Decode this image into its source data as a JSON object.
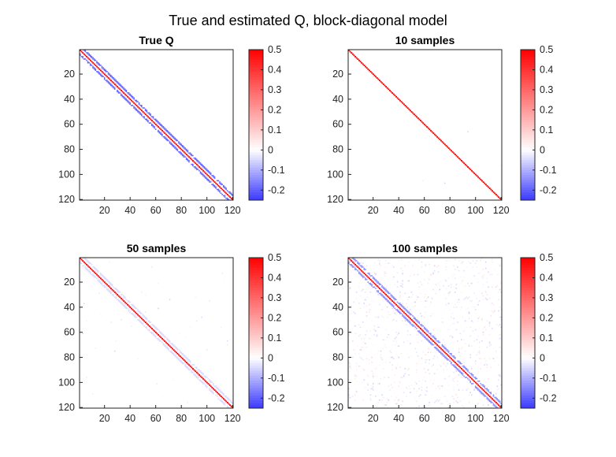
{
  "title": "True and estimated Q, block-diagonal model",
  "colormap": {
    "negative": "#3a3aff",
    "zero": "#ffffff",
    "positive": "#ff0000"
  },
  "chart_data": [
    {
      "type": "heatmap",
      "title": "True Q",
      "size": 120,
      "xticks": [
        "20",
        "40",
        "60",
        "80",
        "100",
        "120"
      ],
      "yticks": [
        "20",
        "40",
        "60",
        "80",
        "100",
        "120"
      ],
      "tick_values": [
        20,
        40,
        60,
        80,
        100,
        120
      ],
      "clim": [
        -0.25,
        0.5
      ],
      "colorbar_ticks": [
        "0.5",
        "0.4",
        "0.3",
        "0.2",
        "0.1",
        "0",
        "-0.1",
        "-0.2"
      ],
      "colorbar_values": [
        0.5,
        0.4,
        0.3,
        0.2,
        0.1,
        0,
        -0.1,
        -0.2
      ],
      "diagonal_value": 0.5,
      "band_offsets": [
        3,
        4
      ],
      "band_value": -0.2,
      "noise_density": 0
    },
    {
      "type": "heatmap",
      "title": "10 samples",
      "size": 120,
      "xticks": [
        "20",
        "40",
        "60",
        "80",
        "100",
        "120"
      ],
      "yticks": [
        "20",
        "40",
        "60",
        "80",
        "100",
        "120"
      ],
      "tick_values": [
        20,
        40,
        60,
        80,
        100,
        120
      ],
      "clim": [
        -0.25,
        0.5
      ],
      "colorbar_ticks": [
        "0.5",
        "0.4",
        "0.3",
        "0.2",
        "0.1",
        "0",
        "-0.1",
        "-0.2"
      ],
      "colorbar_values": [
        0.5,
        0.4,
        0.3,
        0.2,
        0.1,
        0,
        -0.1,
        -0.2
      ],
      "diagonal_value": 0.5,
      "band_offsets": [],
      "band_value": 0,
      "noise_density": 0.0005
    },
    {
      "type": "heatmap",
      "title": "50 samples",
      "size": 120,
      "xticks": [
        "20",
        "40",
        "60",
        "80",
        "100",
        "120"
      ],
      "yticks": [
        "20",
        "40",
        "60",
        "80",
        "100",
        "120"
      ],
      "tick_values": [
        20,
        40,
        60,
        80,
        100,
        120
      ],
      "clim": [
        -0.25,
        0.5
      ],
      "colorbar_ticks": [
        "0.5",
        "0.4",
        "0.3",
        "0.2",
        "0.1",
        "0",
        "-0.1",
        "-0.2"
      ],
      "colorbar_values": [
        0.5,
        0.4,
        0.3,
        0.2,
        0.1,
        0,
        -0.1,
        -0.2
      ],
      "diagonal_value": 0.5,
      "band_offsets": [
        3,
        4
      ],
      "band_value": -0.05,
      "noise_density": 0.004
    },
    {
      "type": "heatmap",
      "title": "100 samples",
      "size": 120,
      "xticks": [
        "20",
        "40",
        "60",
        "80",
        "100",
        "120"
      ],
      "yticks": [
        "20",
        "40",
        "60",
        "80",
        "100",
        "120"
      ],
      "tick_values": [
        20,
        40,
        60,
        80,
        100,
        120
      ],
      "clim": [
        -0.25,
        0.5
      ],
      "colorbar_ticks": [
        "0.5",
        "0.4",
        "0.3",
        "0.2",
        "0.1",
        "0",
        "-0.1",
        "-0.2"
      ],
      "colorbar_values": [
        0.5,
        0.4,
        0.3,
        0.2,
        0.1,
        0,
        -0.1,
        -0.2
      ],
      "diagonal_value": 0.5,
      "band_offsets": [
        3,
        4
      ],
      "band_value": -0.15,
      "noise_density": 0.07
    }
  ]
}
